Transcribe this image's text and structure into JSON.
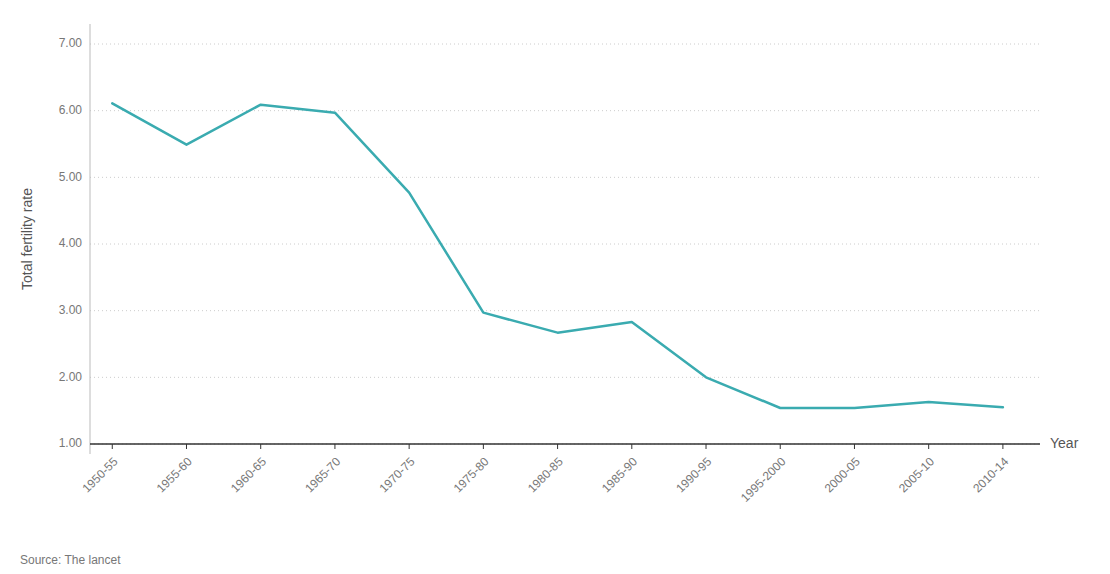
{
  "chart_data": {
    "type": "line",
    "categories": [
      "1950-55",
      "1955-60",
      "1960-65",
      "1965-70",
      "1970-75",
      "1975-80",
      "1980-85",
      "1985-90",
      "1990-95",
      "1995-2000",
      "2000-05",
      "2005-10",
      "2010-14"
    ],
    "values": [
      6.11,
      5.49,
      6.09,
      5.97,
      4.77,
      2.97,
      2.67,
      2.83,
      2.0,
      1.54,
      1.54,
      1.63,
      1.55
    ],
    "color": "#3aabb0",
    "ylabel": "Total fertility rate",
    "xlabel": "Year",
    "ylim": [
      0.85,
      7.3
    ],
    "yticks": [
      {
        "value": 1.0,
        "label": "1.00"
      },
      {
        "value": 2.0,
        "label": "2.00"
      },
      {
        "value": 3.0,
        "label": "3.00"
      },
      {
        "value": 4.0,
        "label": "4.00"
      },
      {
        "value": 5.0,
        "label": "5.00"
      },
      {
        "value": 6.0,
        "label": "6.00"
      },
      {
        "value": 7.0,
        "label": "7.00"
      }
    ],
    "grid": true,
    "source": "Source: The lancet"
  }
}
